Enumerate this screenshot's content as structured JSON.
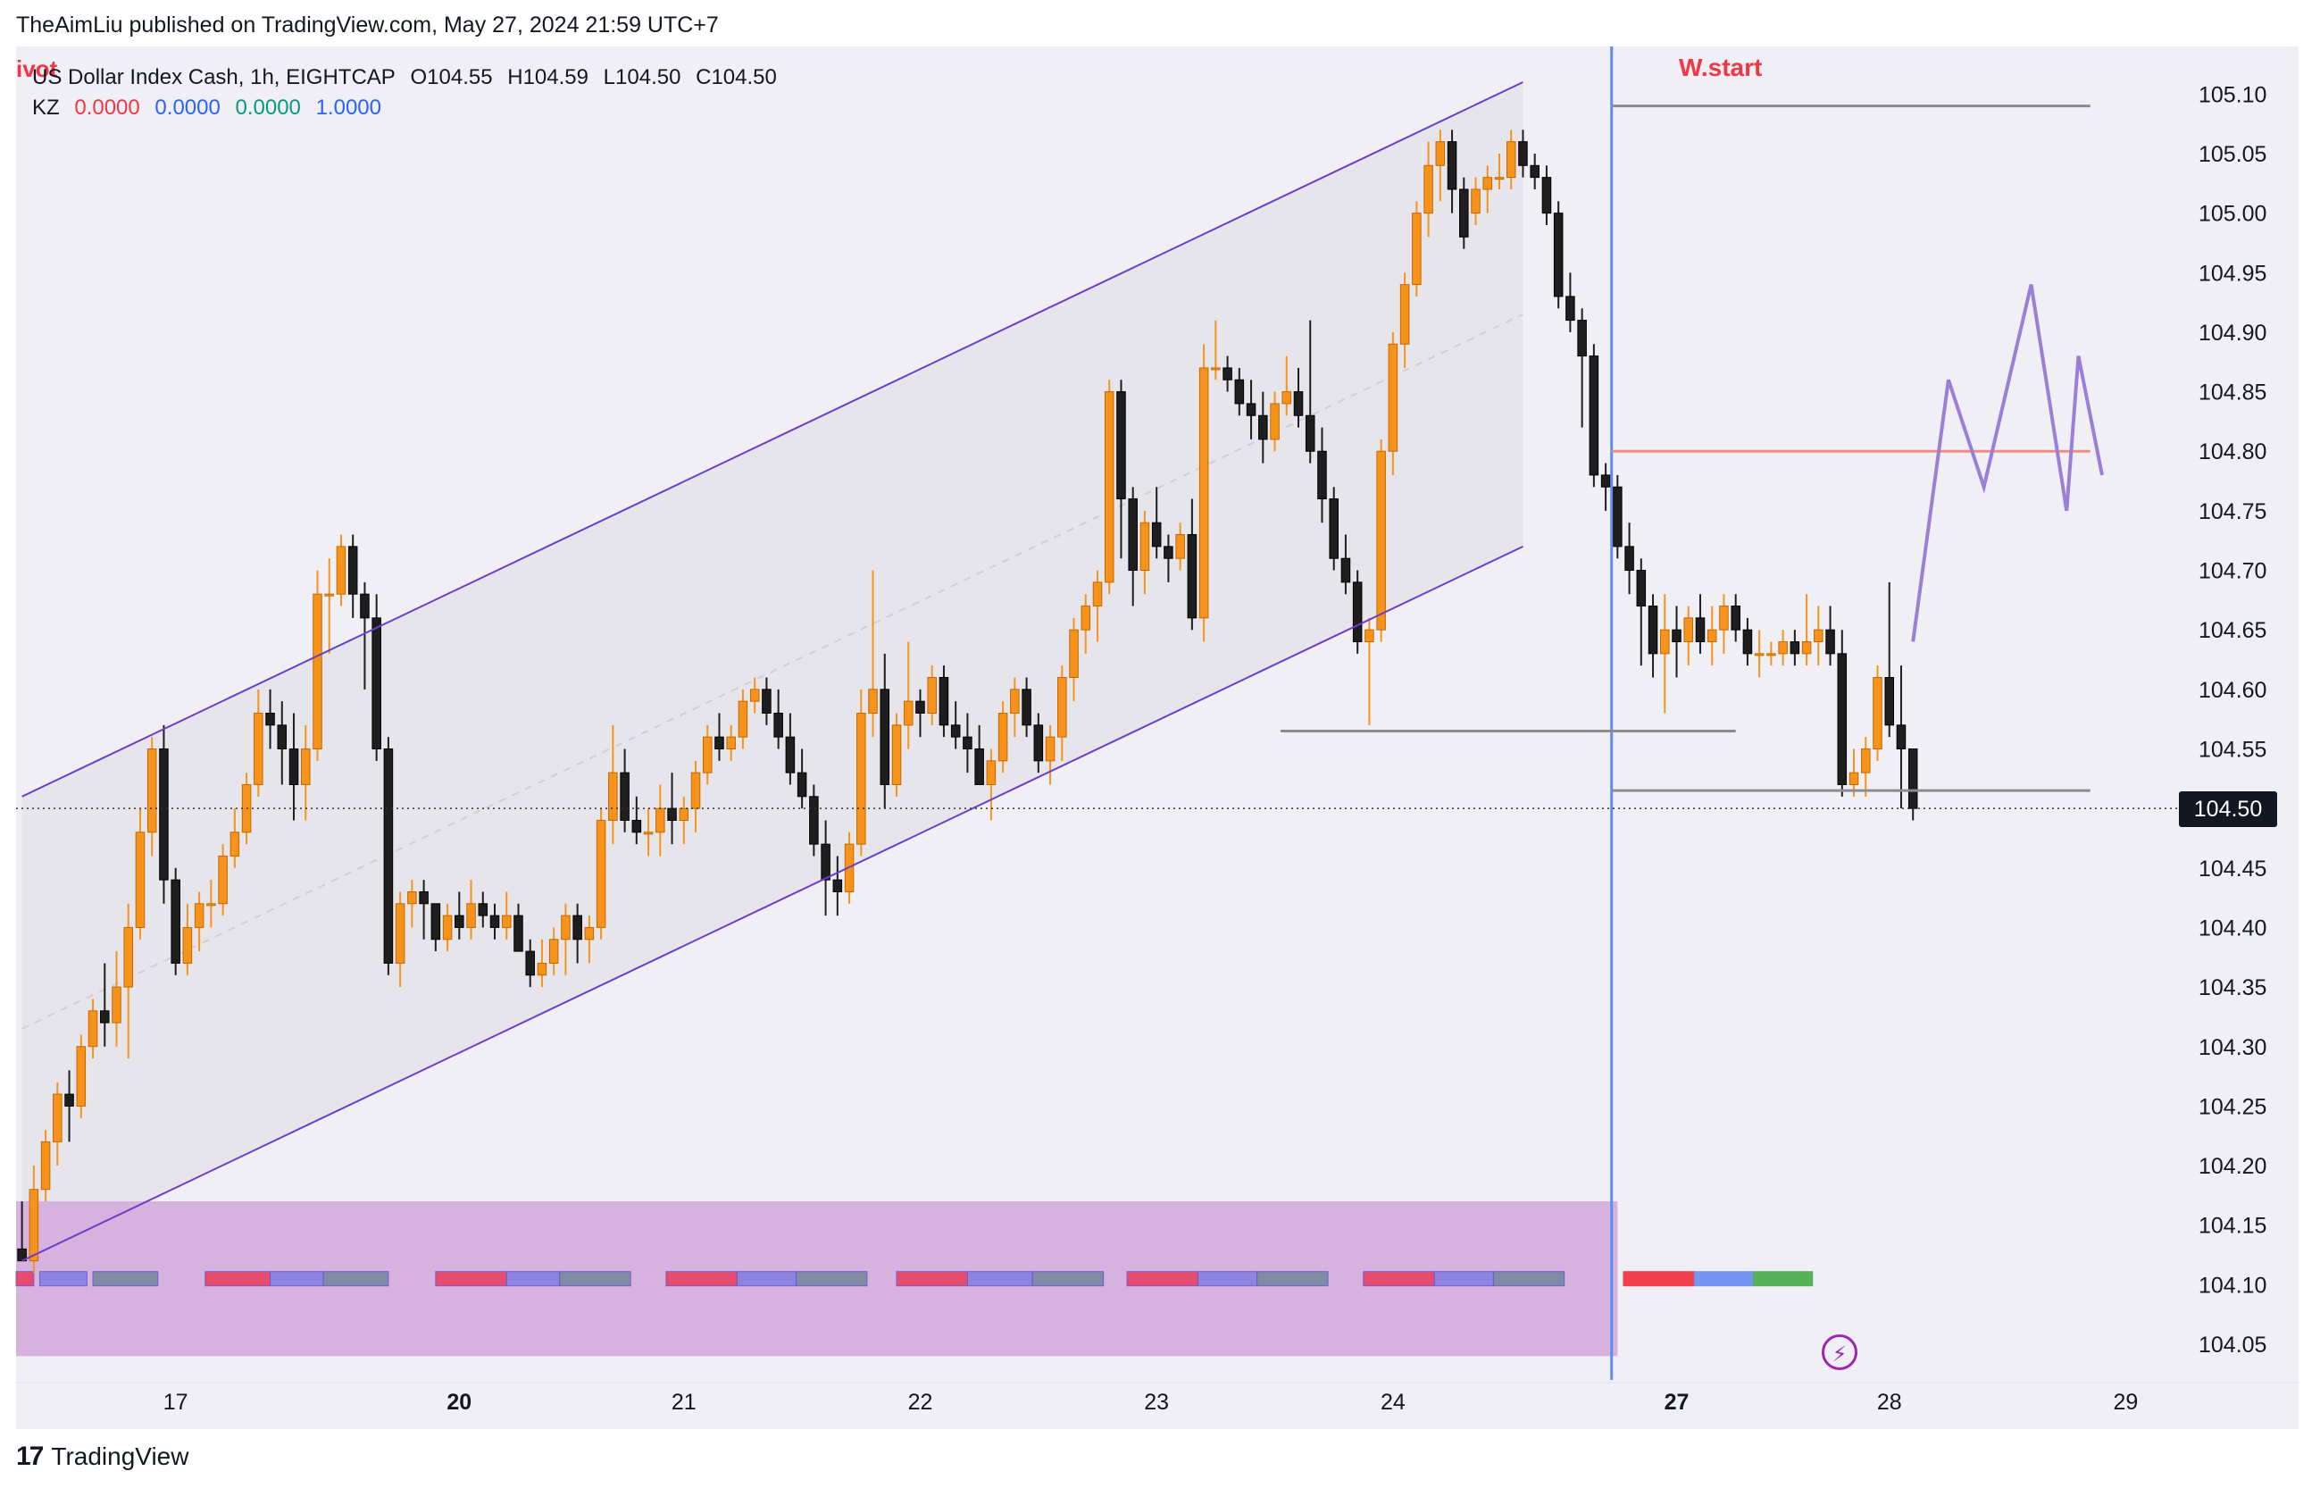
{
  "header": {
    "publish_line": "TheAimLiu published on TradingView.com, May 27, 2024 21:59 UTC+7"
  },
  "legend": {
    "symbol_line": "US Dollar Index Cash, 1h, EIGHTCAP",
    "ohlc": {
      "O": "O104.55",
      "H": "H104.59",
      "L": "L104.50",
      "C": "C104.50"
    },
    "indicator_name": "KZ",
    "indicator_values": [
      {
        "text": "0.0000",
        "color": "#f23645"
      },
      {
        "text": "0.0000",
        "color": "#2962ff"
      },
      {
        "text": "0.0000",
        "color": "#089981"
      },
      {
        "text": "1.0000",
        "color": "#2962ff"
      }
    ],
    "pivot_tag": "ivot"
  },
  "annotations": {
    "week_start_label": "W.start",
    "last_price": "104.50"
  },
  "footer": {
    "brand": "TradingView",
    "logo": "17"
  },
  "colors": {
    "bull": "#f7931a",
    "bear": "#1e1e1e",
    "channel_line": "#6a3fc9",
    "channel_fill": "#e4e3ea",
    "plot_bg": "#f0eff5",
    "killzone": "#d8b2df",
    "week_line": "#5b8def",
    "red_level": "#f28b82",
    "grey_level": "#8c8c8c",
    "projection": "#9b7fd6"
  },
  "chart_data": {
    "type": "candlestick",
    "symbol": "US Dollar Index Cash",
    "timeframe": "1h",
    "ylim": [
      104.02,
      105.14
    ],
    "y_ticks": [
      105.1,
      105.05,
      105.0,
      104.95,
      104.9,
      104.85,
      104.8,
      104.75,
      104.7,
      104.65,
      104.6,
      104.55,
      104.5,
      104.45,
      104.4,
      104.35,
      104.3,
      104.25,
      104.2,
      104.15,
      104.1,
      104.05
    ],
    "x_labels": [
      {
        "label": "17",
        "bar": 13,
        "bold": false
      },
      {
        "label": "20",
        "bar": 37,
        "bold": true
      },
      {
        "label": "21",
        "bar": 56,
        "bold": false
      },
      {
        "label": "22",
        "bar": 76,
        "bold": false
      },
      {
        "label": "23",
        "bar": 96,
        "bold": false
      },
      {
        "label": "24",
        "bar": 116,
        "bold": false
      },
      {
        "label": "27",
        "bar": 140,
        "bold": true
      },
      {
        "label": "28",
        "bar": 158,
        "bold": false
      },
      {
        "label": "29",
        "bar": 178,
        "bold": false
      }
    ],
    "x_range": [
      0,
      183
    ],
    "candles": [
      [
        104.13,
        104.17,
        104.12,
        104.12
      ],
      [
        104.12,
        104.2,
        104.11,
        104.18
      ],
      [
        104.18,
        104.23,
        104.17,
        104.22
      ],
      [
        104.22,
        104.27,
        104.2,
        104.26
      ],
      [
        104.26,
        104.28,
        104.22,
        104.25
      ],
      [
        104.25,
        104.31,
        104.24,
        104.3
      ],
      [
        104.3,
        104.34,
        104.29,
        104.33
      ],
      [
        104.33,
        104.37,
        104.3,
        104.32
      ],
      [
        104.32,
        104.38,
        104.3,
        104.35
      ],
      [
        104.35,
        104.42,
        104.29,
        104.4
      ],
      [
        104.4,
        104.5,
        104.39,
        104.48
      ],
      [
        104.48,
        104.56,
        104.46,
        104.55
      ],
      [
        104.55,
        104.57,
        104.42,
        104.44
      ],
      [
        104.44,
        104.45,
        104.36,
        104.37
      ],
      [
        104.37,
        104.42,
        104.36,
        104.4
      ],
      [
        104.4,
        104.43,
        104.38,
        104.42
      ],
      [
        104.42,
        104.44,
        104.4,
        104.42
      ],
      [
        104.42,
        104.47,
        104.41,
        104.46
      ],
      [
        104.46,
        104.5,
        104.45,
        104.48
      ],
      [
        104.48,
        104.53,
        104.47,
        104.52
      ],
      [
        104.52,
        104.6,
        104.51,
        104.58
      ],
      [
        104.58,
        104.6,
        104.55,
        104.57
      ],
      [
        104.57,
        104.59,
        104.52,
        104.55
      ],
      [
        104.55,
        104.58,
        104.49,
        104.52
      ],
      [
        104.52,
        104.57,
        104.49,
        104.55
      ],
      [
        104.55,
        104.7,
        104.54,
        104.68
      ],
      [
        104.68,
        104.71,
        104.63,
        104.68
      ],
      [
        104.68,
        104.73,
        104.67,
        104.72
      ],
      [
        104.72,
        104.73,
        104.66,
        104.68
      ],
      [
        104.68,
        104.69,
        104.6,
        104.66
      ],
      [
        104.66,
        104.68,
        104.54,
        104.55
      ],
      [
        104.55,
        104.56,
        104.36,
        104.37
      ],
      [
        104.37,
        104.43,
        104.35,
        104.42
      ],
      [
        104.42,
        104.44,
        104.4,
        104.43
      ],
      [
        104.43,
        104.44,
        104.39,
        104.42
      ],
      [
        104.42,
        104.42,
        104.38,
        104.39
      ],
      [
        104.39,
        104.42,
        104.38,
        104.41
      ],
      [
        104.41,
        104.43,
        104.39,
        104.4
      ],
      [
        104.4,
        104.44,
        104.39,
        104.42
      ],
      [
        104.42,
        104.43,
        104.4,
        104.41
      ],
      [
        104.41,
        104.42,
        104.39,
        104.4
      ],
      [
        104.4,
        104.43,
        104.39,
        104.41
      ],
      [
        104.41,
        104.42,
        104.38,
        104.38
      ],
      [
        104.38,
        104.39,
        104.35,
        104.36
      ],
      [
        104.36,
        104.39,
        104.35,
        104.37
      ],
      [
        104.37,
        104.4,
        104.36,
        104.39
      ],
      [
        104.39,
        104.42,
        104.36,
        104.41
      ],
      [
        104.41,
        104.42,
        104.37,
        104.39
      ],
      [
        104.39,
        104.41,
        104.37,
        104.4
      ],
      [
        104.4,
        104.5,
        104.39,
        104.49
      ],
      [
        104.49,
        104.57,
        104.47,
        104.53
      ],
      [
        104.53,
        104.55,
        104.48,
        104.49
      ],
      [
        104.49,
        104.51,
        104.47,
        104.48
      ],
      [
        104.48,
        104.5,
        104.46,
        104.48
      ],
      [
        104.48,
        104.52,
        104.46,
        104.5
      ],
      [
        104.5,
        104.53,
        104.47,
        104.49
      ],
      [
        104.49,
        104.51,
        104.47,
        104.5
      ],
      [
        104.5,
        104.54,
        104.48,
        104.53
      ],
      [
        104.53,
        104.57,
        104.52,
        104.56
      ],
      [
        104.56,
        104.58,
        104.54,
        104.55
      ],
      [
        104.55,
        104.57,
        104.54,
        104.56
      ],
      [
        104.56,
        104.6,
        104.55,
        104.59
      ],
      [
        104.59,
        104.61,
        104.58,
        104.6
      ],
      [
        104.6,
        104.61,
        104.57,
        104.58
      ],
      [
        104.58,
        104.6,
        104.55,
        104.56
      ],
      [
        104.56,
        104.58,
        104.52,
        104.53
      ],
      [
        104.53,
        104.55,
        104.5,
        104.51
      ],
      [
        104.51,
        104.52,
        104.46,
        104.47
      ],
      [
        104.47,
        104.49,
        104.41,
        104.44
      ],
      [
        104.44,
        104.46,
        104.41,
        104.43
      ],
      [
        104.43,
        104.48,
        104.42,
        104.47
      ],
      [
        104.47,
        104.6,
        104.46,
        104.58
      ],
      [
        104.58,
        104.7,
        104.56,
        104.6
      ],
      [
        104.6,
        104.63,
        104.5,
        104.52
      ],
      [
        104.52,
        104.58,
        104.51,
        104.57
      ],
      [
        104.57,
        104.64,
        104.55,
        104.59
      ],
      [
        104.59,
        104.6,
        104.56,
        104.58
      ],
      [
        104.58,
        104.62,
        104.57,
        104.61
      ],
      [
        104.61,
        104.62,
        104.56,
        104.57
      ],
      [
        104.57,
        104.59,
        104.55,
        104.56
      ],
      [
        104.56,
        104.58,
        104.53,
        104.55
      ],
      [
        104.55,
        104.57,
        104.52,
        104.52
      ],
      [
        104.52,
        104.55,
        104.49,
        104.54
      ],
      [
        104.54,
        104.59,
        104.53,
        104.58
      ],
      [
        104.58,
        104.61,
        104.56,
        104.6
      ],
      [
        104.6,
        104.61,
        104.56,
        104.57
      ],
      [
        104.57,
        104.58,
        104.53,
        104.54
      ],
      [
        104.54,
        104.57,
        104.52,
        104.56
      ],
      [
        104.56,
        104.62,
        104.54,
        104.61
      ],
      [
        104.61,
        104.66,
        104.59,
        104.65
      ],
      [
        104.65,
        104.68,
        104.63,
        104.67
      ],
      [
        104.67,
        104.7,
        104.64,
        104.69
      ],
      [
        104.69,
        104.86,
        104.68,
        104.85
      ],
      [
        104.85,
        104.86,
        104.71,
        104.76
      ],
      [
        104.76,
        104.77,
        104.67,
        104.7
      ],
      [
        104.7,
        104.75,
        104.68,
        104.74
      ],
      [
        104.74,
        104.77,
        104.71,
        104.72
      ],
      [
        104.72,
        104.73,
        104.69,
        104.71
      ],
      [
        104.71,
        104.74,
        104.7,
        104.73
      ],
      [
        104.73,
        104.76,
        104.65,
        104.66
      ],
      [
        104.66,
        104.89,
        104.64,
        104.87
      ],
      [
        104.87,
        104.91,
        104.86,
        104.87
      ],
      [
        104.87,
        104.88,
        104.85,
        104.86
      ],
      [
        104.86,
        104.87,
        104.83,
        104.84
      ],
      [
        104.84,
        104.86,
        104.81,
        104.83
      ],
      [
        104.83,
        104.85,
        104.79,
        104.81
      ],
      [
        104.81,
        104.85,
        104.8,
        104.84
      ],
      [
        104.84,
        104.88,
        104.83,
        104.85
      ],
      [
        104.85,
        104.87,
        104.82,
        104.83
      ],
      [
        104.83,
        104.91,
        104.79,
        104.8
      ],
      [
        104.8,
        104.82,
        104.74,
        104.76
      ],
      [
        104.76,
        104.77,
        104.7,
        104.71
      ],
      [
        104.71,
        104.73,
        104.68,
        104.69
      ],
      [
        104.69,
        104.7,
        104.63,
        104.64
      ],
      [
        104.64,
        104.66,
        104.57,
        104.65
      ],
      [
        104.65,
        104.81,
        104.64,
        104.8
      ],
      [
        104.8,
        104.9,
        104.78,
        104.89
      ],
      [
        104.89,
        104.95,
        104.87,
        104.94
      ],
      [
        104.94,
        105.01,
        104.93,
        105.0
      ],
      [
        105.0,
        105.06,
        104.98,
        105.04
      ],
      [
        105.04,
        105.07,
        105.01,
        105.06
      ],
      [
        105.06,
        105.07,
        105.0,
        105.02
      ],
      [
        105.02,
        105.03,
        104.97,
        104.98
      ],
      [
        105.0,
        105.03,
        104.99,
        105.02
      ],
      [
        105.02,
        105.04,
        105.0,
        105.03
      ],
      [
        105.03,
        105.05,
        105.02,
        105.03
      ],
      [
        105.03,
        105.07,
        105.02,
        105.06
      ],
      [
        105.06,
        105.07,
        105.03,
        105.04
      ],
      [
        105.04,
        105.05,
        105.02,
        105.03
      ],
      [
        105.03,
        105.04,
        104.99,
        105.0
      ],
      [
        105.0,
        105.01,
        104.92,
        104.93
      ],
      [
        104.93,
        104.95,
        104.9,
        104.91
      ],
      [
        104.91,
        104.92,
        104.82,
        104.88
      ],
      [
        104.88,
        104.89,
        104.77,
        104.78
      ],
      [
        104.78,
        104.79,
        104.75,
        104.77
      ],
      [
        104.77,
        104.78,
        104.71,
        104.72
      ],
      [
        104.72,
        104.74,
        104.68,
        104.7
      ],
      [
        104.7,
        104.71,
        104.62,
        104.67
      ],
      [
        104.67,
        104.68,
        104.61,
        104.63
      ],
      [
        104.63,
        104.68,
        104.58,
        104.65
      ],
      [
        104.65,
        104.67,
        104.61,
        104.64
      ],
      [
        104.64,
        104.67,
        104.62,
        104.66
      ],
      [
        104.66,
        104.68,
        104.63,
        104.64
      ],
      [
        104.64,
        104.67,
        104.62,
        104.65
      ],
      [
        104.65,
        104.68,
        104.63,
        104.67
      ],
      [
        104.67,
        104.68,
        104.64,
        104.65
      ],
      [
        104.65,
        104.66,
        104.62,
        104.63
      ],
      [
        104.63,
        104.65,
        104.61,
        104.63
      ],
      [
        104.63,
        104.64,
        104.62,
        104.63
      ],
      [
        104.63,
        104.65,
        104.62,
        104.64
      ],
      [
        104.64,
        104.65,
        104.62,
        104.63
      ],
      [
        104.63,
        104.68,
        104.62,
        104.64
      ],
      [
        104.64,
        104.67,
        104.62,
        104.65
      ],
      [
        104.65,
        104.67,
        104.62,
        104.63
      ],
      [
        104.63,
        104.65,
        104.51,
        104.52
      ],
      [
        104.52,
        104.55,
        104.51,
        104.53
      ],
      [
        104.53,
        104.56,
        104.51,
        104.55
      ],
      [
        104.55,
        104.62,
        104.54,
        104.61
      ],
      [
        104.61,
        104.69,
        104.56,
        104.57
      ],
      [
        104.57,
        104.62,
        104.5,
        104.55
      ],
      [
        104.55,
        104.55,
        104.49,
        104.5
      ]
    ],
    "channel": {
      "upper": [
        [
          0,
          104.51
        ],
        [
          127,
          105.11
        ]
      ],
      "lower": [
        [
          0,
          104.12
        ],
        [
          127,
          104.72
        ]
      ],
      "fill_to_bar": 127,
      "midline": [
        [
          0,
          104.315
        ],
        [
          127,
          104.915
        ]
      ]
    },
    "week_start_bar": 135,
    "levels": [
      {
        "price": 105.09,
        "from": 135,
        "to": 175,
        "color": "#8c8c8c"
      },
      {
        "price": 104.8,
        "from": 135,
        "to": 175,
        "color": "#f28b82"
      },
      {
        "price": 104.565,
        "from": 107,
        "to": 145,
        "color": "#8c8c8c"
      },
      {
        "price": 104.515,
        "from": 135,
        "to": 175,
        "color": "#8c8c8c"
      }
    ],
    "last_price_line": 104.5,
    "projection": [
      [
        160,
        104.64
      ],
      [
        163,
        104.86
      ],
      [
        166,
        104.77
      ],
      [
        170,
        104.94
      ],
      [
        173,
        104.75
      ],
      [
        174,
        104.88
      ],
      [
        176,
        104.78
      ]
    ],
    "killzone": {
      "top": 104.17,
      "bottom": 104.04,
      "to_bar": 135
    },
    "session_boxes": {
      "y": 104.105,
      "days": [
        {
          "red": [
            0,
            0.5
          ],
          "blue": [
            2,
            5
          ],
          "green": [
            6.5,
            11
          ]
        },
        {
          "red": [
            16,
            20.5
          ],
          "blue": [
            21.5,
            25
          ],
          "green": [
            26,
            30.5
          ]
        },
        {
          "red": [
            35.5,
            40.5
          ],
          "blue": [
            41.5,
            45
          ],
          "green": [
            46,
            51
          ]
        },
        {
          "red": [
            55,
            60
          ],
          "blue": [
            61,
            65
          ],
          "green": [
            66,
            71
          ]
        },
        {
          "red": [
            74.5,
            79.5
          ],
          "blue": [
            80.5,
            85
          ],
          "green": [
            86,
            91
          ]
        },
        {
          "red": [
            94,
            99
          ],
          "blue": [
            100,
            104
          ],
          "green": [
            105,
            110
          ]
        },
        {
          "red": [
            114,
            119
          ],
          "blue": [
            120,
            124
          ],
          "green": [
            125,
            130
          ]
        }
      ],
      "current": {
        "red": [
          136,
          141
        ],
        "blue": [
          142,
          146
        ],
        "green": [
          147,
          151
        ]
      }
    }
  }
}
